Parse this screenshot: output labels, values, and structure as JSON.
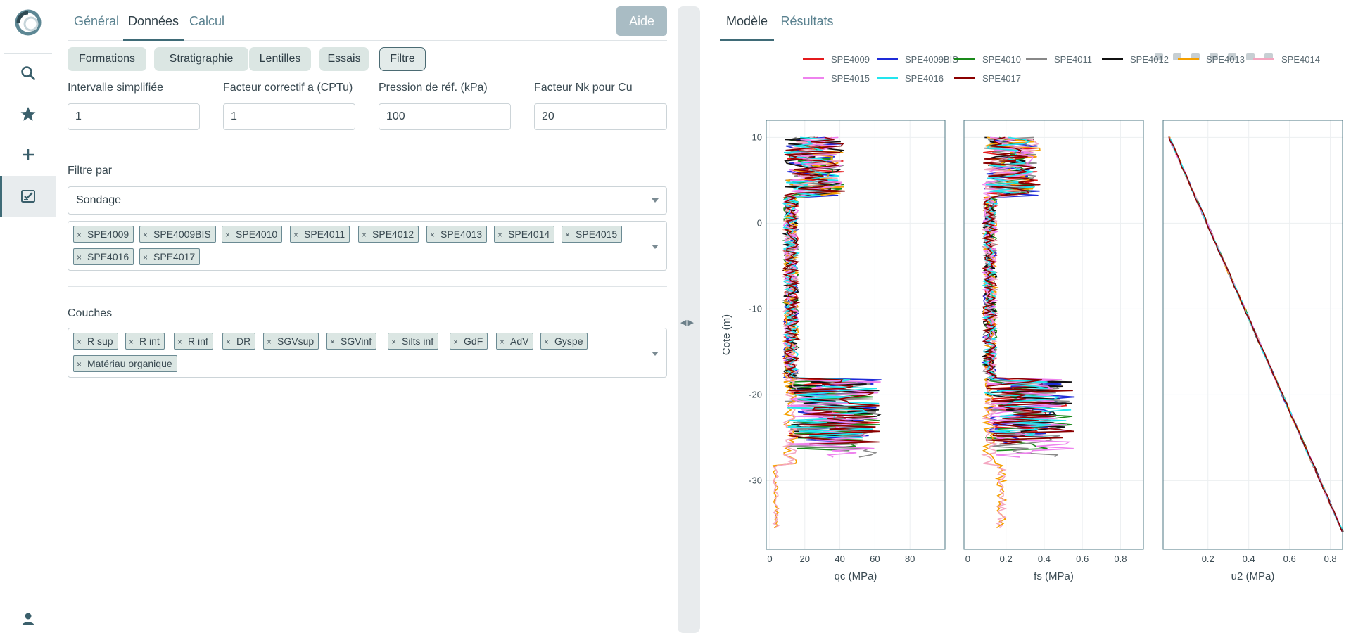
{
  "rail": {
    "icons": [
      "app-logo",
      "search-icon",
      "star-icon",
      "plus-icon",
      "checklist-icon",
      "user-icon"
    ]
  },
  "left": {
    "tabs": [
      {
        "label": "Général",
        "active": false
      },
      {
        "label": "Données",
        "active": true
      },
      {
        "label": "Calcul",
        "active": false
      }
    ],
    "aide_label": "Aide",
    "pills": [
      {
        "label": "Formations",
        "active": false
      },
      {
        "label": "Stratigraphie",
        "active": false
      },
      {
        "label": "Lentilles",
        "active": false
      },
      {
        "label": "Essais",
        "active": false
      },
      {
        "label": "Filtre",
        "active": true
      }
    ],
    "params": [
      {
        "label": "Intervalle simplifiée",
        "value": "1"
      },
      {
        "label": "Facteur correctif a (CPTu)",
        "value": "1"
      },
      {
        "label": "Pression de réf. (kPa)",
        "value": "100"
      },
      {
        "label": "Facteur Nk pour Cu",
        "value": "20"
      }
    ],
    "filter": {
      "label": "Filtre par",
      "selected": "Sondage",
      "chips": [
        "SPE4009",
        "SPE4009BIS",
        "SPE4010",
        "SPE4011",
        "SPE4012",
        "SPE4013",
        "SPE4014",
        "SPE4015",
        "SPE4016",
        "SPE4017"
      ]
    },
    "layers": {
      "label": "Couches",
      "chips": [
        "R sup",
        "R int",
        "R inf",
        "DR",
        "SGVsup",
        "SGVinf",
        "Silts inf",
        "GdF",
        "AdV",
        "Gyspe",
        "Matériau organique"
      ]
    }
  },
  "right": {
    "tabs": [
      {
        "label": "Modèle",
        "active": true
      },
      {
        "label": "Résultats",
        "active": false
      }
    ],
    "toolbar_icons": [
      "camera-icon",
      "zoom-icon",
      "pan-icon",
      "zoom-in-icon",
      "zoom-out-icon",
      "autoscale-icon",
      "reset-axes-icon"
    ]
  },
  "chart_data": {
    "type": "line",
    "ylabel": "Cote (m)",
    "ylim": [
      -38,
      12
    ],
    "yticks": [
      10,
      0,
      -10,
      -20,
      -30
    ],
    "legend_position": "top",
    "series": [
      {
        "name": "SPE4009",
        "color": "#e41a1c"
      },
      {
        "name": "SPE4009BIS",
        "color": "#1e2bd8"
      },
      {
        "name": "SPE4010",
        "color": "#1a8a1a"
      },
      {
        "name": "SPE4011",
        "color": "#888888"
      },
      {
        "name": "SPE4012",
        "color": "#111111"
      },
      {
        "name": "SPE4013",
        "color": "#f5a000"
      },
      {
        "name": "SPE4014",
        "color": "#f4a6c0"
      },
      {
        "name": "SPE4015",
        "color": "#ee82ee"
      },
      {
        "name": "SPE4016",
        "color": "#22e5ee"
      },
      {
        "name": "SPE4017",
        "color": "#8b0000"
      }
    ],
    "panels": [
      {
        "xlabel": "qc (MPa)",
        "xlim": [
          -2,
          100
        ],
        "xticks": [
          0,
          20,
          40,
          60,
          80
        ]
      },
      {
        "xlabel": "fs (MPa)",
        "xlim": [
          -0.02,
          0.92
        ],
        "xticks": [
          0,
          0.2,
          0.4,
          0.6,
          0.8
        ]
      },
      {
        "xlabel": "u2 (MPa)",
        "xlim": [
          -0.02,
          0.86
        ],
        "xticks": [
          0.2,
          0.4,
          0.6,
          0.8
        ]
      }
    ]
  }
}
